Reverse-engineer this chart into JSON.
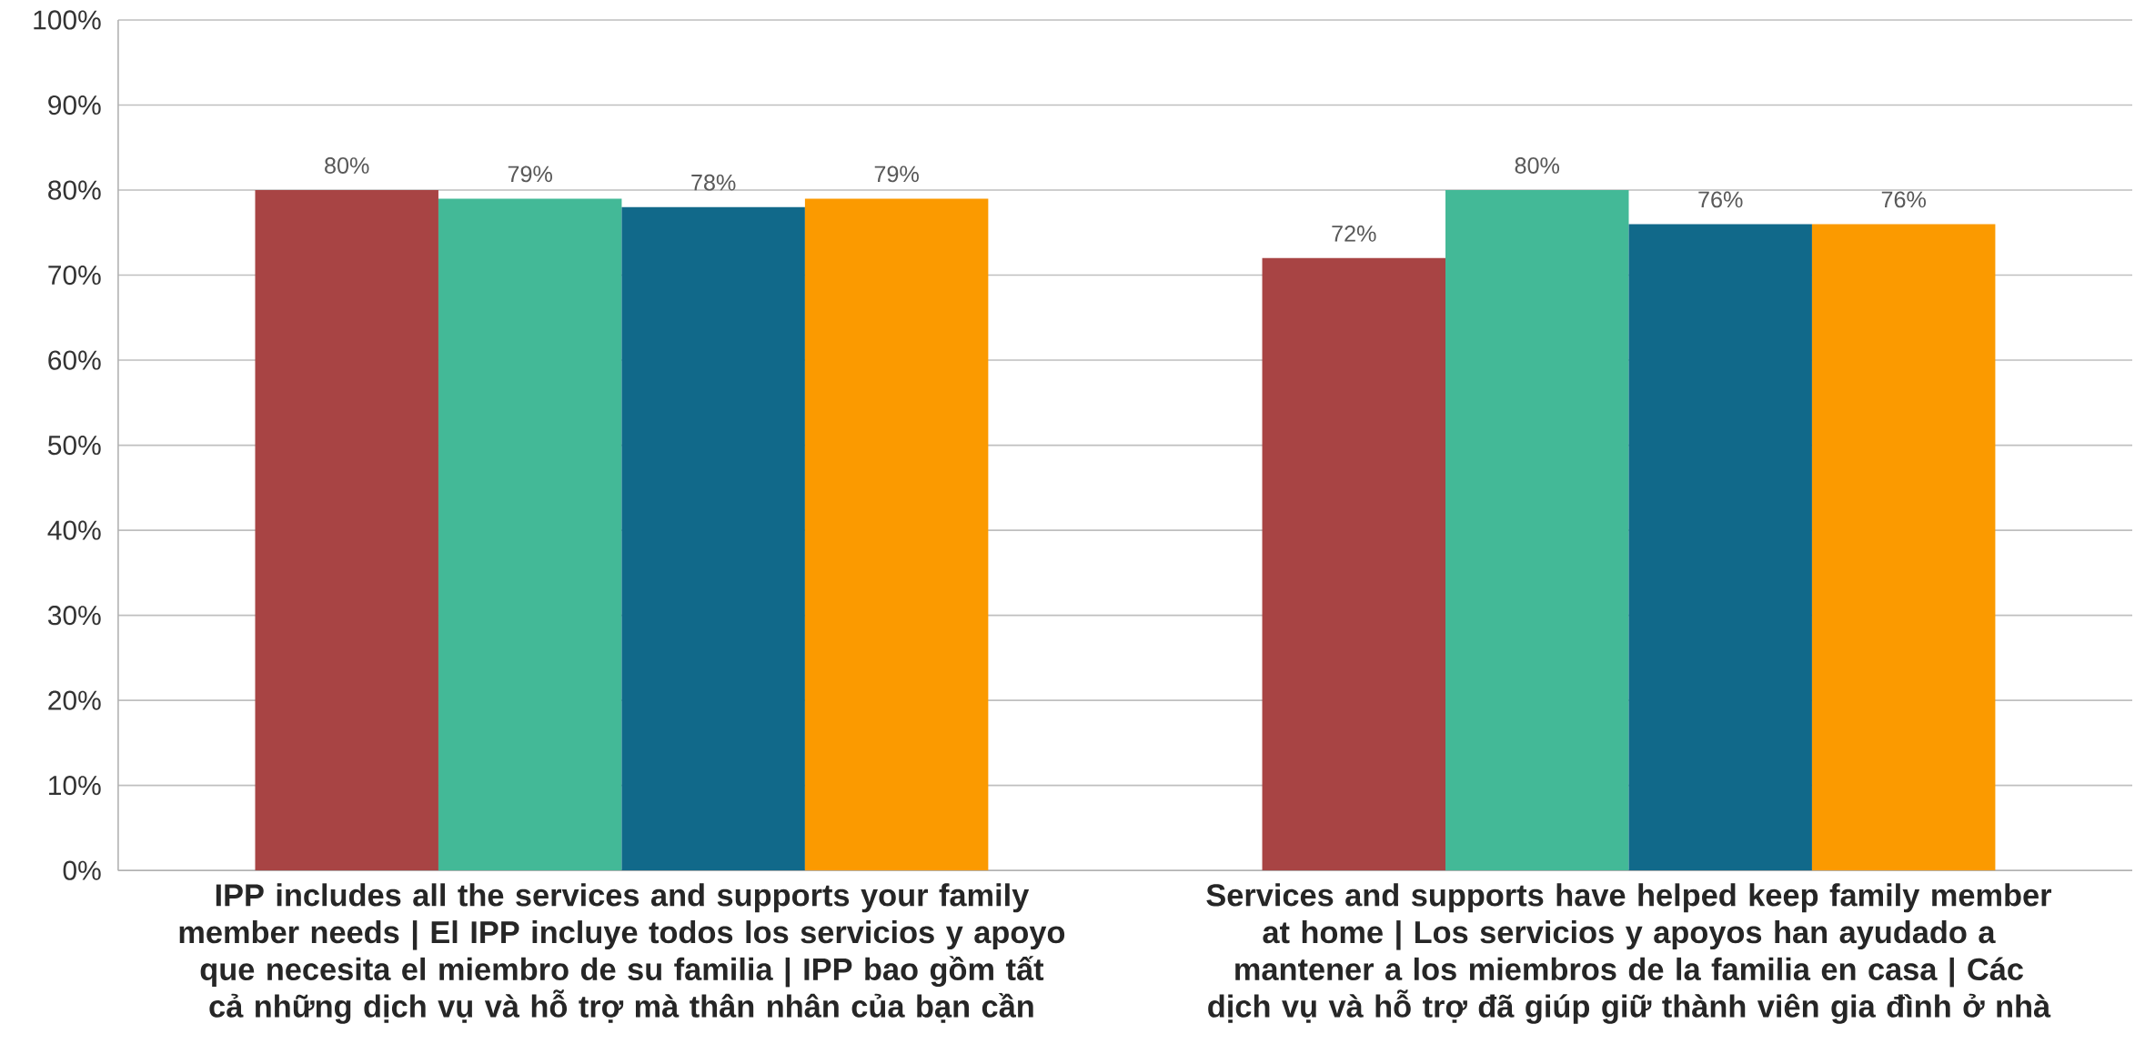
{
  "chart_data": {
    "type": "bar",
    "categories": [
      "IPP includes all the services and supports your family member needs | El IPP incluye todos los servicios y apoyo que necesita el miembro de su familia | IPP bao gồm tất cả những dịch vụ và hỗ trợ mà thân nhân của bạn cần",
      "Services and supports have helped keep family member at home | Los servicios y apoyos han ayudado a mantener a los miembros de la familia en casa | Các dịch vụ và hỗ trợ đã giúp giữ thành viên gia đình ở nhà"
    ],
    "series": [
      {
        "color": "#a84444",
        "values": [
          80,
          72
        ],
        "value_labels": [
          "80%",
          "72%"
        ]
      },
      {
        "color": "#43b997",
        "values": [
          79,
          80
        ],
        "value_labels": [
          "79%",
          "80%"
        ]
      },
      {
        "color": "#11698a",
        "values": [
          78,
          76
        ],
        "value_labels": [
          "78%",
          "76%"
        ]
      },
      {
        "color": "#fb9a00",
        "values": [
          79,
          76
        ],
        "value_labels": [
          "79%",
          "76%"
        ]
      }
    ],
    "ylim": [
      0,
      100
    ],
    "yticks": [
      {
        "value": 0,
        "label": "0%"
      },
      {
        "value": 10,
        "label": "10%"
      },
      {
        "value": 20,
        "label": "20%"
      },
      {
        "value": 30,
        "label": "30%"
      },
      {
        "value": 40,
        "label": "40%"
      },
      {
        "value": 50,
        "label": "50%"
      },
      {
        "value": 60,
        "label": "60%"
      },
      {
        "value": 70,
        "label": "70%"
      },
      {
        "value": 80,
        "label": "80%"
      },
      {
        "value": 90,
        "label": "90%"
      },
      {
        "value": 100,
        "label": "100%"
      }
    ],
    "grid": "y"
  }
}
